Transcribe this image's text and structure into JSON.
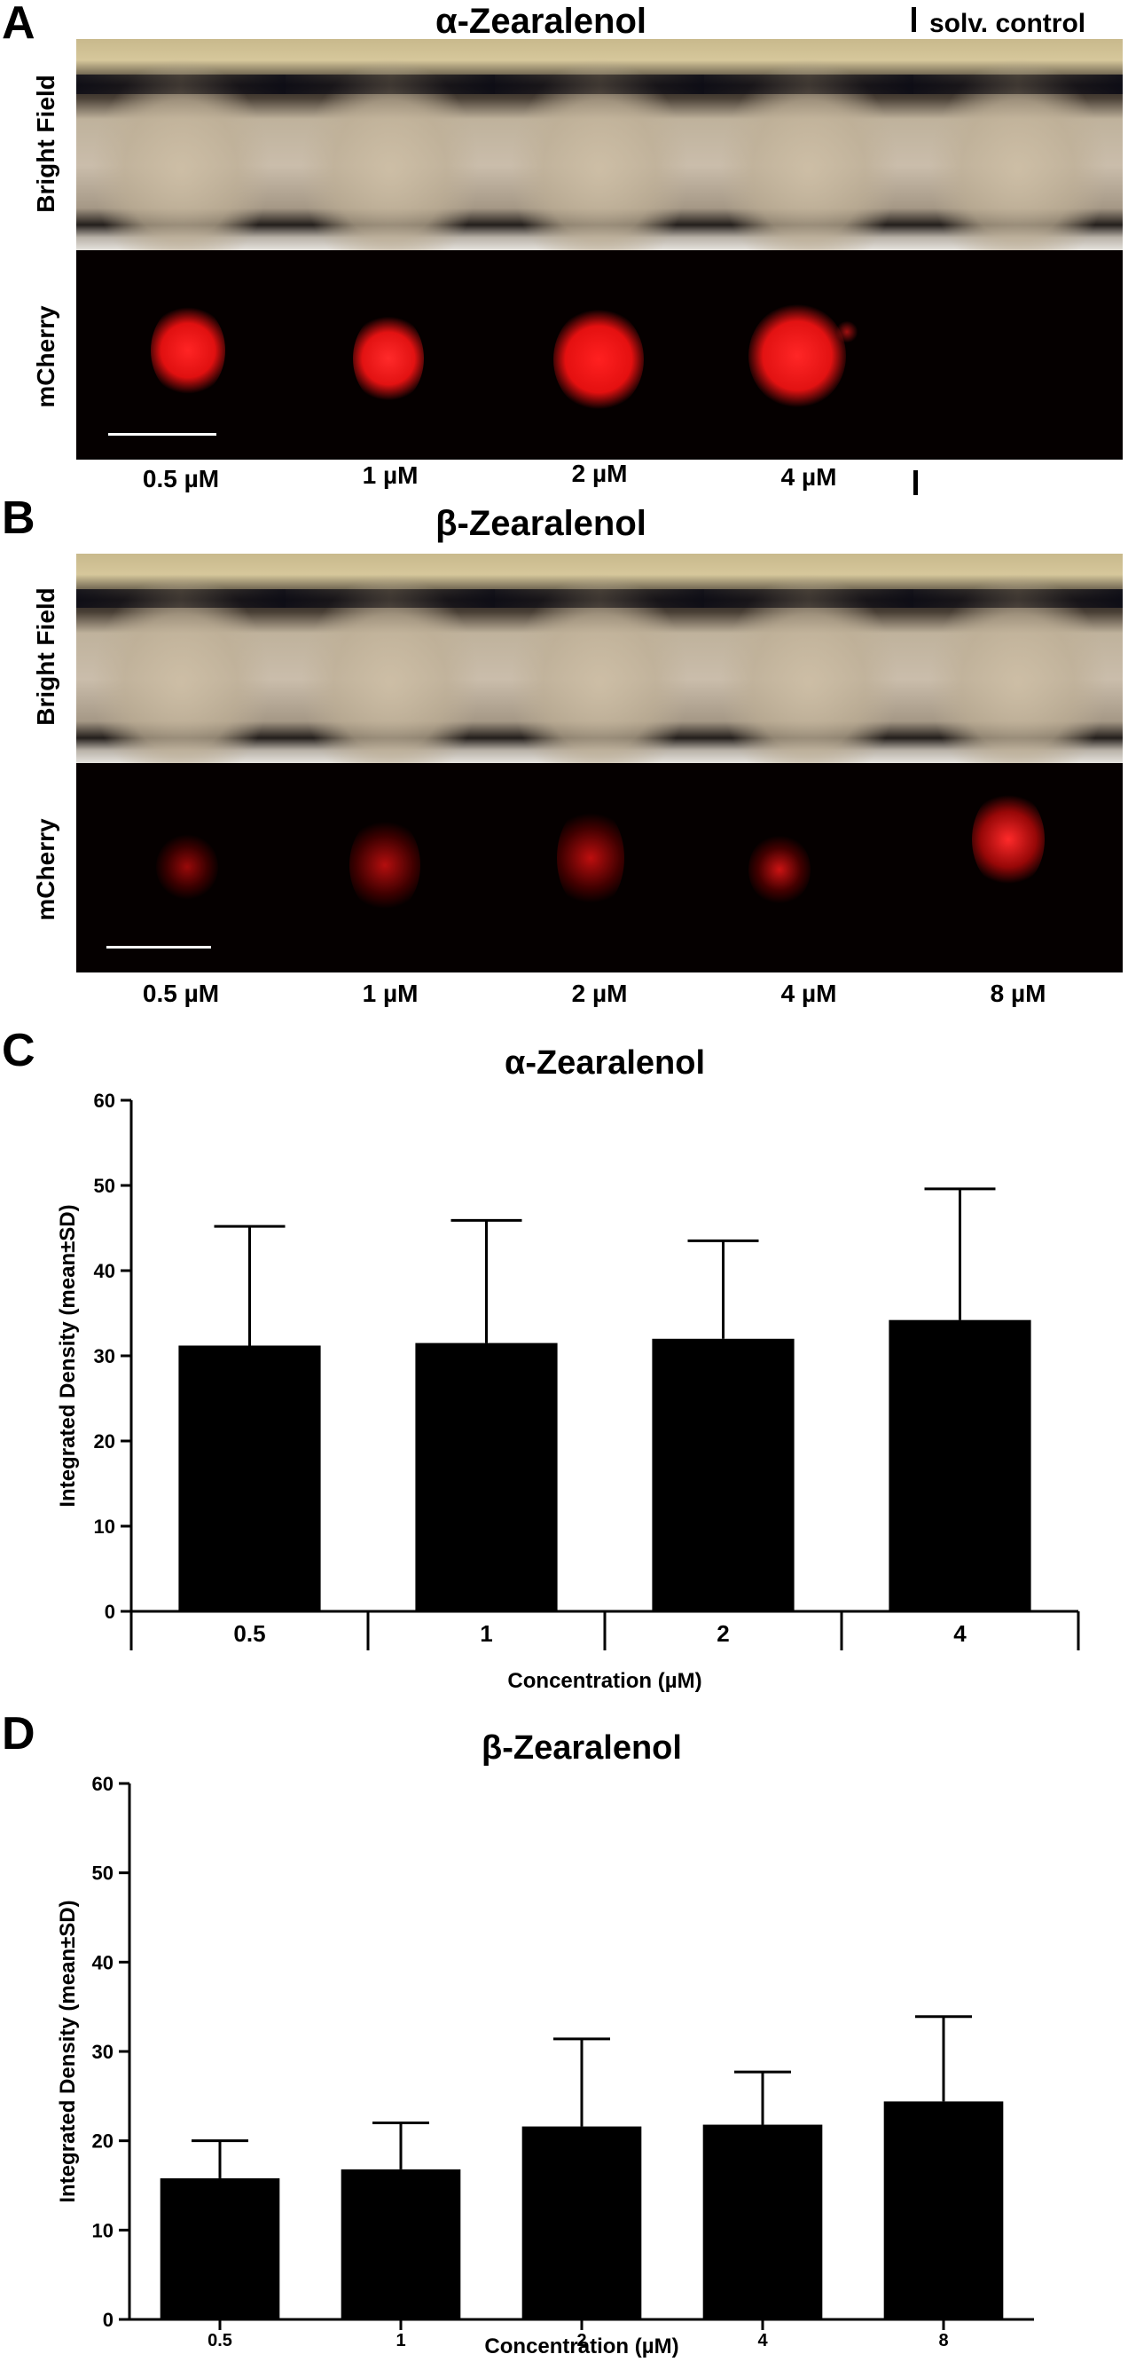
{
  "panelA": {
    "letter": "A",
    "title": "α-Zearalenol",
    "control_label": "solv. control",
    "row_labels": [
      "Bright Field",
      "mCherry"
    ],
    "concentrations": [
      "0.5 µM",
      "1 µM",
      "2 µM",
      "4 µM"
    ]
  },
  "panelB": {
    "letter": "B",
    "title": "β-Zearalenol",
    "row_labels": [
      "Bright Field",
      "mCherry"
    ],
    "concentrations": [
      "0.5 µM",
      "1 µM",
      "2 µM",
      "4 µM",
      "8 µM"
    ]
  },
  "panelC": {
    "letter": "C"
  },
  "panelD": {
    "letter": "D"
  },
  "chart_data": [
    {
      "type": "bar",
      "title": "α-Zearalenol",
      "xlabel": "Concentration (µM)",
      "ylabel": "Integrated Density (mean±SD)",
      "categories": [
        "0.5",
        "1",
        "2",
        "4"
      ],
      "values": [
        31.2,
        31.5,
        32.0,
        34.2
      ],
      "errors": [
        14.0,
        14.4,
        11.5,
        15.4
      ],
      "ylim": [
        0,
        60
      ],
      "yticks": [
        0,
        10,
        20,
        30,
        40,
        50,
        60
      ],
      "bar_color": "#000000",
      "grid": false
    },
    {
      "type": "bar",
      "title": "β-Zearalenol",
      "xlabel": "Concentration (µM)",
      "ylabel": "Integrated Density (mean±SD)",
      "categories": [
        "0.5",
        "1",
        "2",
        "4",
        "8"
      ],
      "values": [
        15.8,
        16.8,
        21.6,
        21.8,
        24.4
      ],
      "errors": [
        4.2,
        5.2,
        9.8,
        5.9,
        9.5
      ],
      "ylim": [
        0,
        60
      ],
      "yticks": [
        0,
        10,
        20,
        30,
        40,
        50,
        60
      ],
      "bar_color": "#000000",
      "grid": false
    }
  ]
}
